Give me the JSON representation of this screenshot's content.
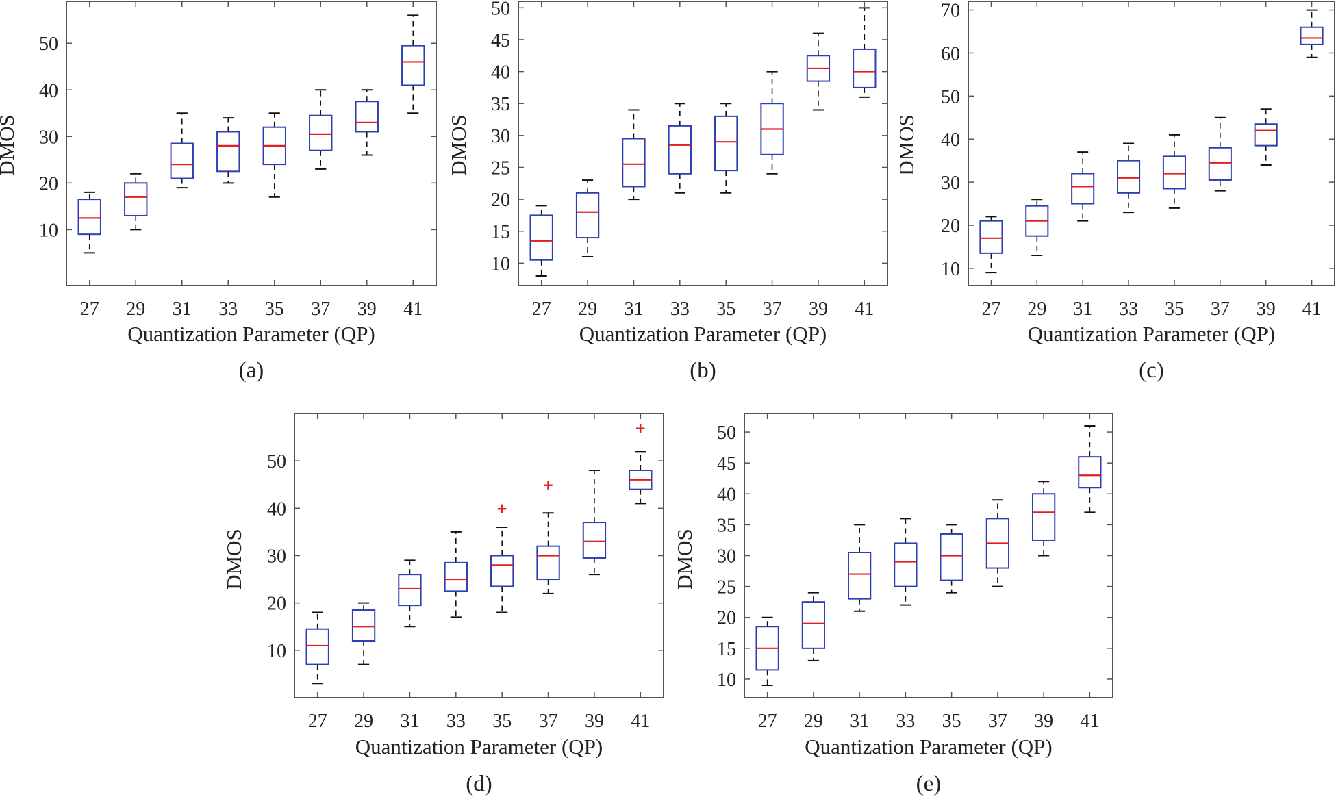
{
  "colors": {
    "box": "#2e3fb0",
    "median": "#e02020",
    "whisker": "#111111",
    "outlier": "#e02020",
    "frame": "#555555",
    "text": "#222222"
  },
  "chart_data": [
    {
      "type": "box",
      "caption": "(a)",
      "xlabel": "Quantization Parameter (QP)",
      "ylabel": "DMOS",
      "categories": [
        "27",
        "29",
        "31",
        "33",
        "35",
        "37",
        "39",
        "41"
      ],
      "ylim": [
        -2,
        59
      ],
      "yticks": [
        10,
        20,
        30,
        40,
        50
      ],
      "boxes": [
        {
          "min": 5,
          "q1": 9,
          "median": 12.5,
          "q3": 16.5,
          "max": 18,
          "outliers": []
        },
        {
          "min": 10,
          "q1": 13,
          "median": 17,
          "q3": 20,
          "max": 22,
          "outliers": []
        },
        {
          "min": 19,
          "q1": 21,
          "median": 24,
          "q3": 28.5,
          "max": 35,
          "outliers": []
        },
        {
          "min": 20,
          "q1": 22.5,
          "median": 28,
          "q3": 31,
          "max": 34,
          "outliers": []
        },
        {
          "min": 17,
          "q1": 24,
          "median": 28,
          "q3": 32,
          "max": 35,
          "outliers": []
        },
        {
          "min": 23,
          "q1": 27,
          "median": 30.5,
          "q3": 34.5,
          "max": 40,
          "outliers": []
        },
        {
          "min": 26,
          "q1": 31,
          "median": 33,
          "q3": 37.5,
          "max": 40,
          "outliers": []
        },
        {
          "min": 35,
          "q1": 41,
          "median": 46,
          "q3": 49.5,
          "max": 56,
          "outliers": []
        }
      ]
    },
    {
      "type": "box",
      "caption": "(b)",
      "xlabel": "Quantization Parameter (QP)",
      "ylabel": "DMOS",
      "categories": [
        "27",
        "29",
        "31",
        "33",
        "35",
        "37",
        "39",
        "41"
      ],
      "ylim": [
        6.5,
        51
      ],
      "yticks": [
        10,
        15,
        20,
        25,
        30,
        35,
        40,
        45,
        50
      ],
      "boxes": [
        {
          "min": 8,
          "q1": 10.5,
          "median": 13.5,
          "q3": 17.5,
          "max": 19,
          "outliers": []
        },
        {
          "min": 11,
          "q1": 14,
          "median": 18,
          "q3": 21,
          "max": 23,
          "outliers": []
        },
        {
          "min": 20,
          "q1": 22,
          "median": 25.5,
          "q3": 29.5,
          "max": 34,
          "outliers": []
        },
        {
          "min": 21,
          "q1": 24,
          "median": 28.5,
          "q3": 31.5,
          "max": 35,
          "outliers": []
        },
        {
          "min": 21,
          "q1": 24.5,
          "median": 29,
          "q3": 33,
          "max": 35,
          "outliers": []
        },
        {
          "min": 24,
          "q1": 27,
          "median": 31,
          "q3": 35,
          "max": 40,
          "outliers": []
        },
        {
          "min": 34,
          "q1": 38.5,
          "median": 40.5,
          "q3": 42.5,
          "max": 46,
          "outliers": []
        },
        {
          "min": 36,
          "q1": 37.5,
          "median": 40,
          "q3": 43.5,
          "max": 50,
          "outliers": []
        }
      ]
    },
    {
      "type": "box",
      "caption": "(c)",
      "xlabel": "Quantization Parameter (QP)",
      "ylabel": "DMOS",
      "categories": [
        "27",
        "29",
        "31",
        "33",
        "35",
        "37",
        "39",
        "41"
      ],
      "ylim": [
        6,
        72
      ],
      "yticks": [
        10,
        20,
        30,
        40,
        50,
        60,
        70
      ],
      "boxes": [
        {
          "min": 9,
          "q1": 13.5,
          "median": 17,
          "q3": 21,
          "max": 22,
          "outliers": []
        },
        {
          "min": 13,
          "q1": 17.5,
          "median": 21,
          "q3": 24.5,
          "max": 26,
          "outliers": []
        },
        {
          "min": 21,
          "q1": 25,
          "median": 29,
          "q3": 32,
          "max": 37,
          "outliers": []
        },
        {
          "min": 23,
          "q1": 27.5,
          "median": 31,
          "q3": 35,
          "max": 39,
          "outliers": []
        },
        {
          "min": 24,
          "q1": 28.5,
          "median": 32,
          "q3": 36,
          "max": 41,
          "outliers": []
        },
        {
          "min": 28,
          "q1": 30.5,
          "median": 34.5,
          "q3": 38,
          "max": 45,
          "outliers": []
        },
        {
          "min": 34,
          "q1": 38.5,
          "median": 42,
          "q3": 43.5,
          "max": 47,
          "outliers": []
        },
        {
          "min": 59,
          "q1": 62,
          "median": 63.5,
          "q3": 66,
          "max": 70,
          "outliers": []
        }
      ]
    },
    {
      "type": "box",
      "caption": "(d)",
      "xlabel": "Quantization Parameter (QP)",
      "ylabel": "DMOS",
      "categories": [
        "27",
        "29",
        "31",
        "33",
        "35",
        "37",
        "39",
        "41"
      ],
      "ylim": [
        0,
        60
      ],
      "yticks": [
        10,
        20,
        30,
        40,
        50
      ],
      "boxes": [
        {
          "min": 3,
          "q1": 7,
          "median": 11,
          "q3": 14.5,
          "max": 18,
          "outliers": []
        },
        {
          "min": 7,
          "q1": 12,
          "median": 15,
          "q3": 18.5,
          "max": 20,
          "outliers": []
        },
        {
          "min": 15,
          "q1": 19.5,
          "median": 23,
          "q3": 26,
          "max": 29,
          "outliers": []
        },
        {
          "min": 17,
          "q1": 22.5,
          "median": 25,
          "q3": 28.5,
          "max": 35,
          "outliers": []
        },
        {
          "min": 18,
          "q1": 23.5,
          "median": 28,
          "q3": 30,
          "max": 36,
          "outliers": [
            40
          ]
        },
        {
          "min": 22,
          "q1": 25,
          "median": 30,
          "q3": 32,
          "max": 39,
          "outliers": [
            45
          ]
        },
        {
          "min": 26,
          "q1": 29.5,
          "median": 33,
          "q3": 37,
          "max": 48,
          "outliers": []
        },
        {
          "min": 41,
          "q1": 44,
          "median": 46,
          "q3": 48,
          "max": 52,
          "outliers": [
            57
          ]
        }
      ]
    },
    {
      "type": "box",
      "caption": "(e)",
      "xlabel": "Quantization Parameter (QP)",
      "ylabel": "DMOS",
      "categories": [
        "27",
        "29",
        "31",
        "33",
        "35",
        "37",
        "39",
        "41"
      ],
      "ylim": [
        7,
        53
      ],
      "yticks": [
        10,
        15,
        20,
        25,
        30,
        35,
        40,
        45,
        50
      ],
      "boxes": [
        {
          "min": 9,
          "q1": 11.5,
          "median": 15,
          "q3": 18.5,
          "max": 20,
          "outliers": []
        },
        {
          "min": 13,
          "q1": 15,
          "median": 19,
          "q3": 22.5,
          "max": 24,
          "outliers": []
        },
        {
          "min": 21,
          "q1": 23,
          "median": 27,
          "q3": 30.5,
          "max": 35,
          "outliers": []
        },
        {
          "min": 22,
          "q1": 25,
          "median": 29,
          "q3": 32,
          "max": 36,
          "outliers": []
        },
        {
          "min": 24,
          "q1": 26,
          "median": 30,
          "q3": 33.5,
          "max": 35,
          "outliers": []
        },
        {
          "min": 25,
          "q1": 28,
          "median": 32,
          "q3": 36,
          "max": 39,
          "outliers": []
        },
        {
          "min": 30,
          "q1": 32.5,
          "median": 37,
          "q3": 40,
          "max": 42,
          "outliers": []
        },
        {
          "min": 37,
          "q1": 41,
          "median": 43,
          "q3": 46,
          "max": 51,
          "outliers": []
        }
      ]
    }
  ]
}
